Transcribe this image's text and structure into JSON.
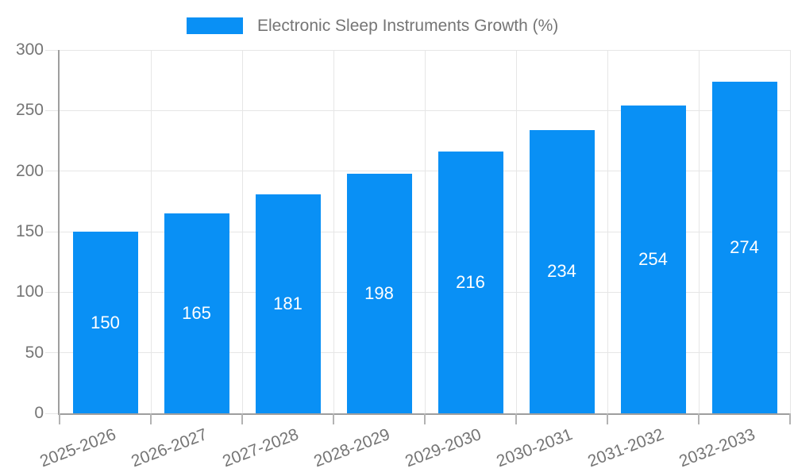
{
  "chart_data": {
    "type": "bar",
    "title": "",
    "legend": "Electronic Sleep Instruments Growth (%)",
    "legend_position": "top-center",
    "categories": [
      "2025-2026",
      "2026-2027",
      "2027-2028",
      "2028-2029",
      "2029-2030",
      "2030-2031",
      "2031-2032",
      "2032-2033"
    ],
    "values": [
      150,
      165,
      181,
      198,
      216,
      234,
      254,
      274
    ],
    "xlabel": "",
    "ylabel": "",
    "ylim": [
      0,
      300
    ],
    "yticks": [
      0,
      50,
      100,
      150,
      200,
      250,
      300
    ],
    "grid": true,
    "colors": {
      "bar": "#0990f5",
      "bar_value_label": "#ffffff",
      "axis_line": "#9e9e9e",
      "gridline": "#e6e6e6",
      "tick_mark": "#b3b3b3",
      "tick_label": "#757575",
      "legend_text": "#757575",
      "background": "#ffffff"
    }
  }
}
